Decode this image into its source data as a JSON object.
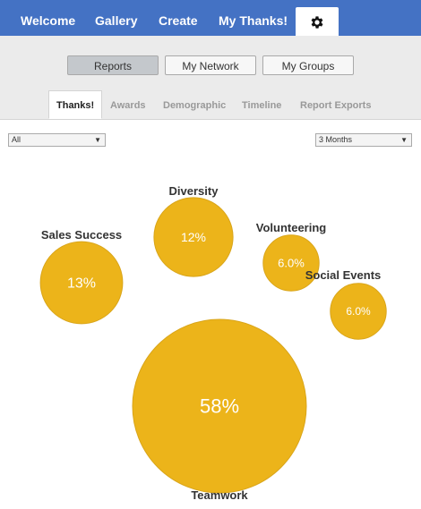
{
  "nav": {
    "items": [
      {
        "label": "Welcome"
      },
      {
        "label": "Gallery"
      },
      {
        "label": "Create"
      },
      {
        "label": "My Thanks!"
      }
    ],
    "settings_icon": "gear-icon"
  },
  "subnav": {
    "buttons": [
      {
        "label": "Reports",
        "active": true
      },
      {
        "label": "My Network",
        "active": false
      },
      {
        "label": "My Groups",
        "active": false
      }
    ]
  },
  "tabs": [
    {
      "label": "Thanks!",
      "active": true
    },
    {
      "label": "Awards",
      "active": false
    },
    {
      "label": "Demographic",
      "active": false
    },
    {
      "label": "Timeline",
      "active": false
    },
    {
      "label": "Report Exports",
      "active": false
    }
  ],
  "filters": {
    "left": {
      "value": "All"
    },
    "right": {
      "value": "3 Months"
    }
  },
  "colors": {
    "nav_bg": "#4472c4",
    "bubble_fill": "#ecb41a",
    "bubble_stroke": "#d9a51a"
  },
  "chart_data": {
    "type": "bubble",
    "bubbles": [
      {
        "label": "Diversity",
        "value": 12,
        "value_label": "12%"
      },
      {
        "label": "Sales Success",
        "value": 13,
        "value_label": "13%"
      },
      {
        "label": "Volunteering",
        "value": 6.0,
        "value_label": "6.0%"
      },
      {
        "label": "Social Events",
        "value": 6.0,
        "value_label": "6.0%"
      },
      {
        "label": "Teamwork",
        "value": 58,
        "value_label": "58%"
      }
    ]
  }
}
